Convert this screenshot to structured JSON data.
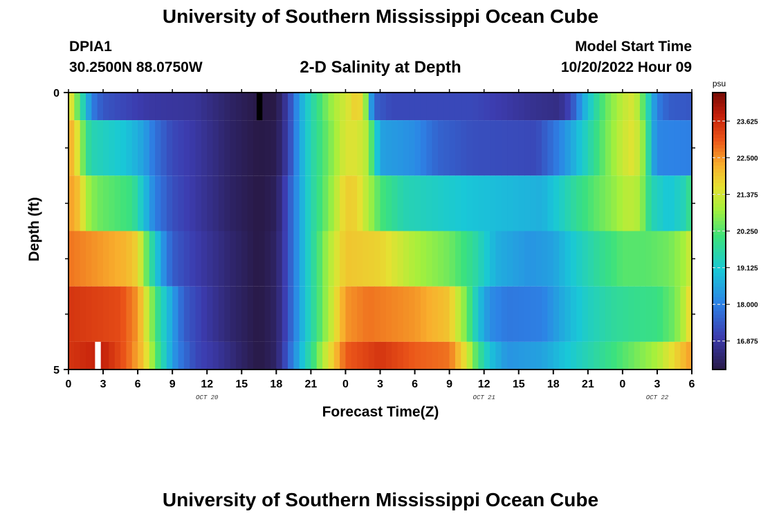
{
  "page": {
    "title": "University of Southern Mississippi Ocean Cube",
    "title_bottom": "University of Southern Mississippi Ocean Cube",
    "station_id": "DPIA1",
    "station_coords": "30.2500N  88.0750W",
    "plot_title": "2-D Salinity at Depth",
    "model_start_label": "Model Start Time",
    "model_start_value": "10/20/2022 Hour 09"
  },
  "chart_data": {
    "type": "heatmap",
    "title": "2-D Salinity at Depth",
    "xlabel": "Forecast Time(Z)",
    "ylabel": "Depth (ft)",
    "colorbar_unit": "psu",
    "x_hours_range": [
      0,
      54
    ],
    "y_range": [
      0,
      5
    ],
    "y_tick_labels": [
      {
        "value": 0,
        "label": "0"
      },
      {
        "value": 5,
        "label": "5"
      }
    ],
    "y_minor_ticks": [
      1,
      2,
      3,
      4
    ],
    "x_ticks": [
      {
        "hour": 0,
        "label": "0"
      },
      {
        "hour": 3,
        "label": "3"
      },
      {
        "hour": 6,
        "label": "6"
      },
      {
        "hour": 9,
        "label": "9"
      },
      {
        "hour": 12,
        "label": "12"
      },
      {
        "hour": 15,
        "label": "15"
      },
      {
        "hour": 18,
        "label": "18"
      },
      {
        "hour": 21,
        "label": "21"
      },
      {
        "hour": 24,
        "label": "0"
      },
      {
        "hour": 27,
        "label": "3"
      },
      {
        "hour": 30,
        "label": "6"
      },
      {
        "hour": 33,
        "label": "9"
      },
      {
        "hour": 36,
        "label": "12"
      },
      {
        "hour": 39,
        "label": "15"
      },
      {
        "hour": 42,
        "label": "18"
      },
      {
        "hour": 45,
        "label": "21"
      },
      {
        "hour": 48,
        "label": "0"
      },
      {
        "hour": 51,
        "label": "3"
      },
      {
        "hour": 54,
        "label": "6"
      }
    ],
    "date_labels": [
      {
        "hour": 12,
        "label": "OCT 20"
      },
      {
        "hour": 36,
        "label": "OCT 21"
      },
      {
        "hour": 51,
        "label": "OCT 22"
      }
    ],
    "colorbar": {
      "range": [
        16.0,
        24.5
      ],
      "tick_values": [
        16.875,
        18.0,
        19.125,
        20.25,
        21.375,
        22.5,
        23.625
      ],
      "tick_labels": [
        "16.875",
        "18.000",
        "19.125",
        "20.250",
        "21.375",
        "22.500",
        "23.625"
      ]
    },
    "rows": [
      {
        "depth_range": [
          0,
          0.5
        ],
        "keys": [
          [
            0,
            22.0
          ],
          [
            0.5,
            21.0
          ],
          [
            1.0,
            20.0
          ],
          [
            1.5,
            19.0
          ],
          [
            2.0,
            18.0
          ],
          [
            3.0,
            17.4
          ],
          [
            7.0,
            16.9
          ],
          [
            11.0,
            16.8
          ],
          [
            14.0,
            16.3
          ],
          [
            16.5,
            16.0
          ],
          [
            18.0,
            16.0
          ],
          [
            19.0,
            17.0
          ],
          [
            20.0,
            18.5
          ],
          [
            21.0,
            19.5
          ],
          [
            22.0,
            20.3
          ],
          [
            23.0,
            21.0
          ],
          [
            24.5,
            21.6
          ],
          [
            25.0,
            22.0
          ],
          [
            25.5,
            21.5
          ],
          [
            26.0,
            20.0
          ],
          [
            26.3,
            18.0
          ],
          [
            26.7,
            17.5
          ],
          [
            28.0,
            17.2
          ],
          [
            35.0,
            17.2
          ],
          [
            40.5,
            16.7
          ],
          [
            42.5,
            16.6
          ],
          [
            43.5,
            17.2
          ],
          [
            44.0,
            17.8
          ],
          [
            44.5,
            18.5
          ],
          [
            45.5,
            19.5
          ],
          [
            46.5,
            20.4
          ],
          [
            48.0,
            21.2
          ],
          [
            49.0,
            21.5
          ],
          [
            50.0,
            20.0
          ],
          [
            50.5,
            18.8
          ],
          [
            51.0,
            18.0
          ],
          [
            52.0,
            17.5
          ],
          [
            54.0,
            17.4
          ]
        ]
      },
      {
        "depth_range": [
          0.5,
          1.5
        ],
        "keys": [
          [
            0,
            22.5
          ],
          [
            0.8,
            21.5
          ],
          [
            1.5,
            20.0
          ],
          [
            2.0,
            19.5
          ],
          [
            5.0,
            19.0
          ],
          [
            6.5,
            18.5
          ],
          [
            7.5,
            17.8
          ],
          [
            9.0,
            17.2
          ],
          [
            11.0,
            16.9
          ],
          [
            14.0,
            16.3
          ],
          [
            16.5,
            16.0
          ],
          [
            18.0,
            16.1
          ],
          [
            19.0,
            17.0
          ],
          [
            20.0,
            18.5
          ],
          [
            21.0,
            19.5
          ],
          [
            22.5,
            20.5
          ],
          [
            24.0,
            21.5
          ],
          [
            25.0,
            21.5
          ],
          [
            26.0,
            21.0
          ],
          [
            26.5,
            19.5
          ],
          [
            27.0,
            18.5
          ],
          [
            30.0,
            18.2
          ],
          [
            32.0,
            17.6
          ],
          [
            35.0,
            17.3
          ],
          [
            40.5,
            17.2
          ],
          [
            42.0,
            17.8
          ],
          [
            44.0,
            18.8
          ],
          [
            45.5,
            19.8
          ],
          [
            46.5,
            20.5
          ],
          [
            48.0,
            21.3
          ],
          [
            49.0,
            21.6
          ],
          [
            50.0,
            20.5
          ],
          [
            50.5,
            18.8
          ],
          [
            51.0,
            18.1
          ],
          [
            54.0,
            18.0
          ]
        ]
      },
      {
        "depth_range": [
          1.5,
          2.5
        ],
        "keys": [
          [
            0,
            22.5
          ],
          [
            1.0,
            22.0
          ],
          [
            1.5,
            21.0
          ],
          [
            2.5,
            20.5
          ],
          [
            5.5,
            20.0
          ],
          [
            6.5,
            19.0
          ],
          [
            7.5,
            18.0
          ],
          [
            9.0,
            17.3
          ],
          [
            11.0,
            16.9
          ],
          [
            14.0,
            16.3
          ],
          [
            16.5,
            16.0
          ],
          [
            18.0,
            16.2
          ],
          [
            19.0,
            17.3
          ],
          [
            20.0,
            18.5
          ],
          [
            21.0,
            19.5
          ],
          [
            23.0,
            21.0
          ],
          [
            24.0,
            21.9
          ],
          [
            25.0,
            21.8
          ],
          [
            26.0,
            21.0
          ],
          [
            27.0,
            20.2
          ],
          [
            29.0,
            19.5
          ],
          [
            35.0,
            19.0
          ],
          [
            41.0,
            18.7
          ],
          [
            42.5,
            19.2
          ],
          [
            44.0,
            19.8
          ],
          [
            45.5,
            20.3
          ],
          [
            47.0,
            20.7
          ],
          [
            48.5,
            21.2
          ],
          [
            49.5,
            21.0
          ],
          [
            50.5,
            19.5
          ],
          [
            52.0,
            19.0
          ],
          [
            53.5,
            19.5
          ],
          [
            54.0,
            20.2
          ]
        ]
      },
      {
        "depth_range": [
          2.5,
          3.5
        ],
        "keys": [
          [
            0,
            22.8
          ],
          [
            5.0,
            22.2
          ],
          [
            6.0,
            21.8
          ],
          [
            7.0,
            20.0
          ],
          [
            8.0,
            18.5
          ],
          [
            9.0,
            17.5
          ],
          [
            11.0,
            17.0
          ],
          [
            14.0,
            16.4
          ],
          [
            16.5,
            16.0
          ],
          [
            18.0,
            16.3
          ],
          [
            19.0,
            17.3
          ],
          [
            20.0,
            18.5
          ],
          [
            21.0,
            19.5
          ],
          [
            22.5,
            21.0
          ],
          [
            24.0,
            22.0
          ],
          [
            27.0,
            21.8
          ],
          [
            30.0,
            21.0
          ],
          [
            33.0,
            20.5
          ],
          [
            35.0,
            19.8
          ],
          [
            37.0,
            18.7
          ],
          [
            40.0,
            18.3
          ],
          [
            42.0,
            18.5
          ],
          [
            44.0,
            19.2
          ],
          [
            46.0,
            19.8
          ],
          [
            48.0,
            20.3
          ],
          [
            50.0,
            20.3
          ],
          [
            52.0,
            20.5
          ],
          [
            53.5,
            21.0
          ],
          [
            54.0,
            21.5
          ]
        ]
      },
      {
        "depth_range": [
          3.5,
          4.5
        ],
        "keys": [
          [
            0,
            23.5
          ],
          [
            4.5,
            23.2
          ],
          [
            6.0,
            22.5
          ],
          [
            7.0,
            21.0
          ],
          [
            8.0,
            19.5
          ],
          [
            9.0,
            18.5
          ],
          [
            10.0,
            17.5
          ],
          [
            12.0,
            16.9
          ],
          [
            14.0,
            16.4
          ],
          [
            16.5,
            16.0
          ],
          [
            18.0,
            16.3
          ],
          [
            19.0,
            17.3
          ],
          [
            20.0,
            18.5
          ],
          [
            21.0,
            19.5
          ],
          [
            22.5,
            21.0
          ],
          [
            24.0,
            22.5
          ],
          [
            26.0,
            22.8
          ],
          [
            30.0,
            22.5
          ],
          [
            33.0,
            22.0
          ],
          [
            34.5,
            20.5
          ],
          [
            35.5,
            19.0
          ],
          [
            36.5,
            18.2
          ],
          [
            38.0,
            17.9
          ],
          [
            41.0,
            18.0
          ],
          [
            43.0,
            18.7
          ],
          [
            45.0,
            19.3
          ],
          [
            47.0,
            19.7
          ],
          [
            49.0,
            19.9
          ],
          [
            51.0,
            20.0
          ],
          [
            52.5,
            20.5
          ],
          [
            53.5,
            21.3
          ],
          [
            54.0,
            22.0
          ]
        ]
      },
      {
        "depth_range": [
          4.5,
          5.0
        ],
        "keys": [
          [
            0,
            23.5
          ],
          [
            3.0,
            23.8
          ],
          [
            5.0,
            23.0
          ],
          [
            6.5,
            22.0
          ],
          [
            7.5,
            20.5
          ],
          [
            8.5,
            19.0
          ],
          [
            9.5,
            18.0
          ],
          [
            11.0,
            17.2
          ],
          [
            13.0,
            16.8
          ],
          [
            15.0,
            16.3
          ],
          [
            16.5,
            16.0
          ],
          [
            18.0,
            16.3
          ],
          [
            19.0,
            17.5
          ],
          [
            20.0,
            18.7
          ],
          [
            21.0,
            19.8
          ],
          [
            22.0,
            21.0
          ],
          [
            23.0,
            22.0
          ],
          [
            24.0,
            23.0
          ],
          [
            27.0,
            23.5
          ],
          [
            30.0,
            23.0
          ],
          [
            33.0,
            22.8
          ],
          [
            34.5,
            21.5
          ],
          [
            35.5,
            20.0
          ],
          [
            36.5,
            19.0
          ],
          [
            38.0,
            18.3
          ],
          [
            41.0,
            18.5
          ],
          [
            43.0,
            19.0
          ],
          [
            45.0,
            19.5
          ],
          [
            47.0,
            20.0
          ],
          [
            49.0,
            20.5
          ],
          [
            51.0,
            21.0
          ],
          [
            53.0,
            22.0
          ],
          [
            54.0,
            22.5
          ]
        ]
      }
    ],
    "annotations": [
      {
        "hour_range": [
          16.3,
          16.8
        ],
        "depth_range": [
          0,
          0.5
        ],
        "fill": "#000000"
      },
      {
        "hour_range": [
          2.3,
          2.8
        ],
        "depth_range": [
          4.5,
          5.0
        ],
        "fill": "#ffffff"
      }
    ]
  }
}
